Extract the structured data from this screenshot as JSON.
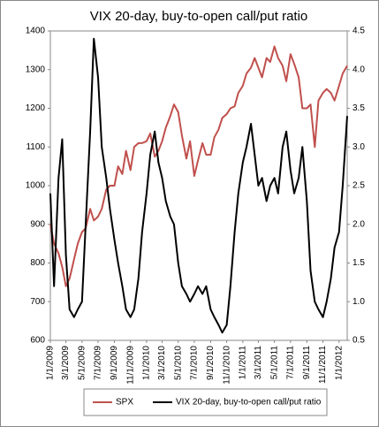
{
  "chart_data": {
    "type": "line",
    "title": "VIX 20-day, buy-to-open call/put ratio",
    "x": [
      "1/1/2009",
      "1/15/2009",
      "2/1/2009",
      "2/15/2009",
      "3/1/2009",
      "3/15/2009",
      "4/1/2009",
      "4/15/2009",
      "5/1/2009",
      "5/15/2009",
      "6/1/2009",
      "6/15/2009",
      "7/1/2009",
      "7/15/2009",
      "8/1/2009",
      "8/15/2009",
      "9/1/2009",
      "9/15/2009",
      "10/1/2009",
      "10/15/2009",
      "11/1/2009",
      "11/15/2009",
      "12/1/2009",
      "12/15/2009",
      "1/1/2010",
      "1/15/2010",
      "2/1/2010",
      "2/15/2010",
      "3/1/2010",
      "3/15/2010",
      "4/1/2010",
      "4/15/2010",
      "5/1/2010",
      "5/15/2010",
      "6/1/2010",
      "6/15/2010",
      "7/1/2010",
      "7/15/2010",
      "8/1/2010",
      "8/15/2010",
      "9/1/2010",
      "9/15/2010",
      "10/1/2010",
      "10/15/2010",
      "11/1/2010",
      "11/15/2010",
      "12/1/2010",
      "12/15/2010",
      "1/1/2011",
      "1/15/2011",
      "2/1/2011",
      "2/15/2011",
      "3/1/2011",
      "3/15/2011",
      "4/1/2011",
      "4/15/2011",
      "5/1/2011",
      "5/15/2011",
      "6/1/2011",
      "6/15/2011",
      "7/1/2011",
      "7/15/2011",
      "8/1/2011",
      "8/15/2011",
      "9/1/2011",
      "9/15/2011",
      "10/1/2011",
      "10/15/2011",
      "11/1/2011",
      "11/15/2011",
      "12/1/2011",
      "12/15/2011",
      "1/1/2012",
      "1/15/2012",
      "2/1/2012"
    ],
    "series": [
      {
        "name": "SPX",
        "color": "#c0504d",
        "values": [
          900,
          850,
          825,
          790,
          740,
          760,
          810,
          850,
          880,
          890,
          940,
          910,
          920,
          940,
          990,
          1000,
          1000,
          1050,
          1030,
          1090,
          1040,
          1100,
          1110,
          1110,
          1115,
          1135,
          1075,
          1090,
          1115,
          1150,
          1180,
          1210,
          1190,
          1130,
          1070,
          1115,
          1025,
          1065,
          1110,
          1080,
          1080,
          1125,
          1145,
          1175,
          1185,
          1200,
          1205,
          1240,
          1258,
          1290,
          1305,
          1330,
          1305,
          1280,
          1330,
          1320,
          1360,
          1330,
          1310,
          1270,
          1340,
          1315,
          1280,
          1200,
          1200,
          1210,
          1100,
          1220,
          1240,
          1250,
          1240,
          1220,
          1258,
          1290,
          1310
        ]
      },
      {
        "name": "VIX 20-day, buy-to-open call/put ratio",
        "color": "#000000",
        "axis": "y2",
        "values": [
          2.4,
          1.2,
          2.6,
          3.1,
          1.6,
          0.9,
          0.8,
          0.9,
          1.0,
          2.0,
          3.2,
          4.4,
          3.9,
          3.0,
          2.6,
          2.2,
          1.8,
          1.5,
          1.2,
          0.9,
          0.8,
          0.9,
          1.3,
          1.9,
          2.4,
          2.9,
          3.2,
          2.8,
          2.6,
          2.3,
          2.1,
          2.0,
          1.5,
          1.2,
          1.1,
          1.0,
          1.1,
          1.2,
          1.1,
          1.2,
          0.9,
          0.8,
          0.7,
          0.6,
          0.7,
          1.2,
          1.9,
          2.4,
          2.8,
          3.0,
          3.3,
          2.9,
          2.5,
          2.6,
          2.3,
          2.5,
          2.6,
          2.4,
          3.0,
          3.2,
          2.7,
          2.4,
          2.6,
          3.0,
          2.3,
          1.4,
          1.0,
          0.9,
          0.8,
          1.0,
          1.3,
          1.7,
          1.9,
          2.5,
          3.4
        ]
      }
    ],
    "xticks": [
      "1/1/2009",
      "3/1/2009",
      "5/1/2009",
      "7/1/2009",
      "9/1/2009",
      "11/1/2009",
      "1/1/2010",
      "3/1/2010",
      "5/1/2010",
      "7/1/2010",
      "9/1/2010",
      "11/1/2010",
      "1/1/2011",
      "3/1/2011",
      "5/1/2011",
      "7/1/2011",
      "9/1/2011",
      "11/1/2011",
      "1/1/2012"
    ],
    "ylim": [
      600,
      1400
    ],
    "yticks": [
      600,
      700,
      800,
      900,
      1000,
      1100,
      1200,
      1300,
      1400
    ],
    "y2lim": [
      0.5,
      4.5
    ],
    "y2ticks": [
      0.5,
      {
        "value": 1,
        "label": "1.0"
      },
      1.5,
      {
        "value": 2,
        "label": "2.0"
      },
      2.5,
      {
        "value": 3,
        "label": "3.0"
      },
      3.5,
      {
        "value": 4,
        "label": "4.0"
      },
      4.5
    ],
    "legend": "bottom"
  }
}
